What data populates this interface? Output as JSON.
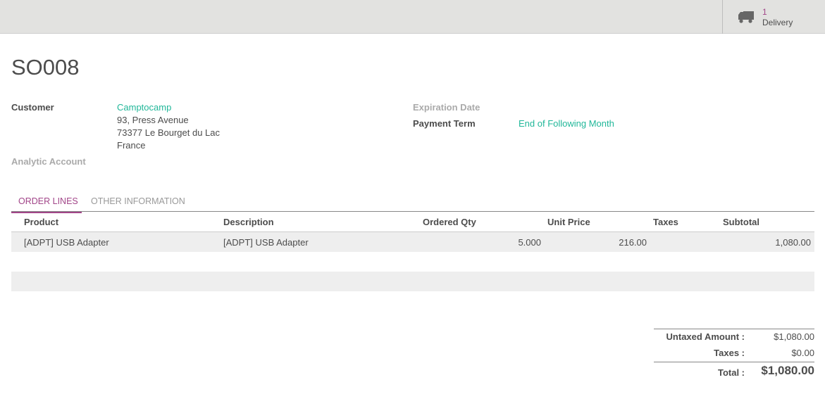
{
  "smart_button": {
    "count": "1",
    "label": "Delivery",
    "icon": "truck-icon"
  },
  "title": "SO008",
  "fields": {
    "customer_label": "Customer",
    "customer_name": "Camptocamp",
    "address": [
      "93, Press Avenue",
      "73377 Le Bourget du Lac",
      "France"
    ],
    "analytic_label": "Analytic Account",
    "expiration_label": "Expiration Date",
    "payment_term_label": "Payment Term",
    "payment_term_value": "End of Following Month"
  },
  "tabs": [
    {
      "label": "ORDER LINES",
      "active": true
    },
    {
      "label": "OTHER INFORMATION",
      "active": false
    }
  ],
  "table": {
    "headers": [
      "Product",
      "Description",
      "Ordered Qty",
      "Unit Price",
      "Taxes",
      "Subtotal"
    ],
    "rows": [
      {
        "product": "[ADPT] USB Adapter",
        "description": "[ADPT] USB Adapter",
        "qty": "5.000",
        "unit_price": "216.00",
        "taxes": "",
        "subtotal": "1,080.00"
      }
    ]
  },
  "totals": {
    "untaxed_label": "Untaxed Amount :",
    "untaxed": "$1,080.00",
    "taxes_label": "Taxes :",
    "taxes": "$0.00",
    "total_label": "Total :",
    "total": "$1,080.00"
  },
  "colors": {
    "accent": "#a24689",
    "link": "#21b799"
  }
}
